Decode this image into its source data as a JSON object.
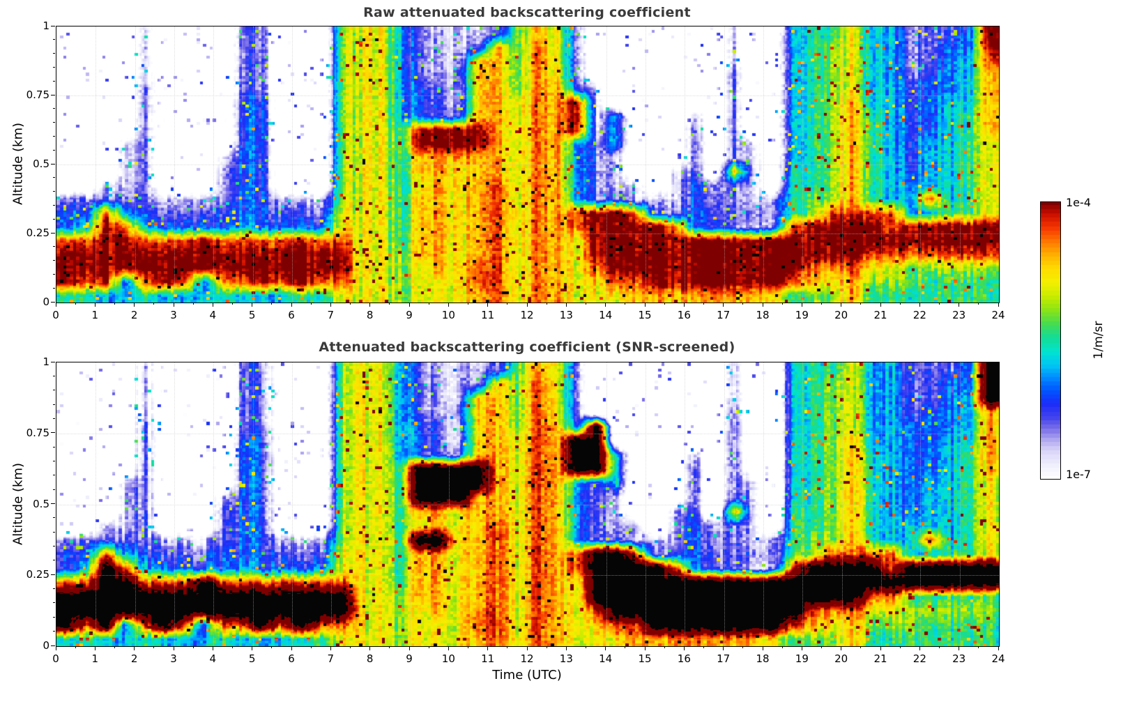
{
  "chart_data": {
    "type": "heatmap",
    "xlabel": "Time (UTC)",
    "ylabel": "Altitude (km)",
    "x_range_hours": [
      0,
      24
    ],
    "y_range_km": [
      0,
      1
    ],
    "x_ticks": [
      0,
      1,
      2,
      3,
      4,
      5,
      6,
      7,
      8,
      9,
      10,
      11,
      12,
      13,
      14,
      15,
      16,
      17,
      18,
      19,
      20,
      21,
      22,
      23,
      24
    ],
    "y_ticks": [
      [
        1,
        "1"
      ],
      [
        0.75,
        "0.75"
      ],
      [
        0.5,
        "0.5"
      ],
      [
        0.25,
        "0.25"
      ],
      [
        0,
        "0"
      ]
    ],
    "colorbar": {
      "max_label": "1e-4",
      "min_label": "1e-7",
      "units": "1/m/sr",
      "stops": [
        [
          0.0,
          "#ffffff"
        ],
        [
          0.05,
          "#efeffc"
        ],
        [
          0.1,
          "#d8d4f8"
        ],
        [
          0.14,
          "#b0a8f0"
        ],
        [
          0.18,
          "#7a6ee8"
        ],
        [
          0.22,
          "#4444ee"
        ],
        [
          0.27,
          "#1c2cf8"
        ],
        [
          0.32,
          "#0055ff"
        ],
        [
          0.37,
          "#0090ff"
        ],
        [
          0.41,
          "#00c4f4"
        ],
        [
          0.46,
          "#00e4d0"
        ],
        [
          0.51,
          "#14dc96"
        ],
        [
          0.56,
          "#46dc50"
        ],
        [
          0.61,
          "#8ce414"
        ],
        [
          0.66,
          "#c8ec00"
        ],
        [
          0.71,
          "#f4f000"
        ],
        [
          0.76,
          "#ffdc00"
        ],
        [
          0.81,
          "#ffb000"
        ],
        [
          0.86,
          "#ff7400"
        ],
        [
          0.91,
          "#f53400"
        ],
        [
          0.96,
          "#c80c00"
        ],
        [
          1.0,
          "#7f0000"
        ]
      ]
    },
    "grid_encoding": {
      "columns": 48,
      "rows": 20,
      "time_step_hours": 0.5,
      "altitude_step_km": 0.05,
      "row_order": "first row = 0.95-1.00 km (top), last row = 0.00-0.05 km (surface)",
      "symbols": "'.' = no signal (white); digits 0-9 and 'A' = log10(backscatter) from -7 to -4 in steps of 0.3 (level n -> 10^(-7+0.3n) 1/m/sr); 'K' = saturated/overrange rendered black (SNR-screened panel)"
    },
    "panels": [
      {
        "title": "Raw attenuated backscattering coefficient",
        "grid": [
          "....1....22...6774211126872.......1..4557442223A",
          "....1....22...6774211286972.......1..4567442233A",
          "....1....22...6774211886972.......1..45674422349",
          "....1....22...6774212886972.......2..45674423348",
          "....2....22...67743218869831......2..45674433348",
          "....2....33...677432188798A1......2..45684433448",
          "....2....33...677432288798A14...1.2..45685433458",
          "....2....33...6775AAAA8798A14...2.2..45685433458",
          "...12....33...6775AAAA8798424...2.21.45685434457",
          "...12...133...677588888798421...2.21.45685434457",
          "...12...233...677588788798421..12.81.55685434457",
          "..112...233...6775787897984211.13121.55685444457",
          "222221112331116775887897984221113121156685449457",
          "339432223332227775887897989AA9223222156999944557",
          "34A943333433337775887897989AAAA9322119AAAA9AAAAA",
          "99AA999A9999999775887897987AAAAAAAAAAAAAAAAAAAAA",
          "AAAAAAAAAAAAAAA776887897987AAAAAAAAAAAAAA9999999",
          "AAAAAAAAAAAAAAA7767879979879AAAAAAAAAA9897766666",
          "A9A39A9399A9A99776777997987899AAAAAAA98786665555",
          "554454445444557776777897987778888888756685555555"
        ]
      },
      {
        "title": "Attenuated backscattering coefficient (SNR-screened)",
        "grid": [
          "....1....22...6774211126872.......1..4557442223K",
          "....1....22...6774211286972.......1..4567442233K",
          "....1....22...6774211886972.......1..4567442234K",
          "....1....22...6774212886972.......2..45674423348",
          "....2....22...6774321886983K......2..45674433348",
          "....2....33...677432188798KK......2..45684433448",
          "....2....33...677432288798KK4...1.2..45685433458",
          "....2....33...6775KKKK8798KK4...2.2..45685433458",
          "...12....33...6775KKKK8798424...2.21.45685434457",
          "...12...133...6775KKK88798421...2.21.45685434457",
          "...12...233...677588788798421..12.81.55685434457",
          "..112...233...6775787897984211.13121.55685444457",
          "222221112331116775KK7897984221113121156685449457",
          "339432223332227775887897989KK9223222156999944557",
          "34K943333433337775887897989KKKK9322119KKKK9KKKKK",
          "99KK999K9999999775887897987KKKKKKKKKKKKKKKKKKKKK",
          "KKKKKKKKKKKKKKK776887897987KKKKKKKKKKKKKK9955555",
          "KKKKKKKKKKKKKKK7767879979879KKKKKKKKKK9897766666",
          "K9K39K9399K9K99776777997987899KKKKKKK98786665555",
          "554454445444557776777897987778888888756685555555"
        ]
      }
    ]
  }
}
